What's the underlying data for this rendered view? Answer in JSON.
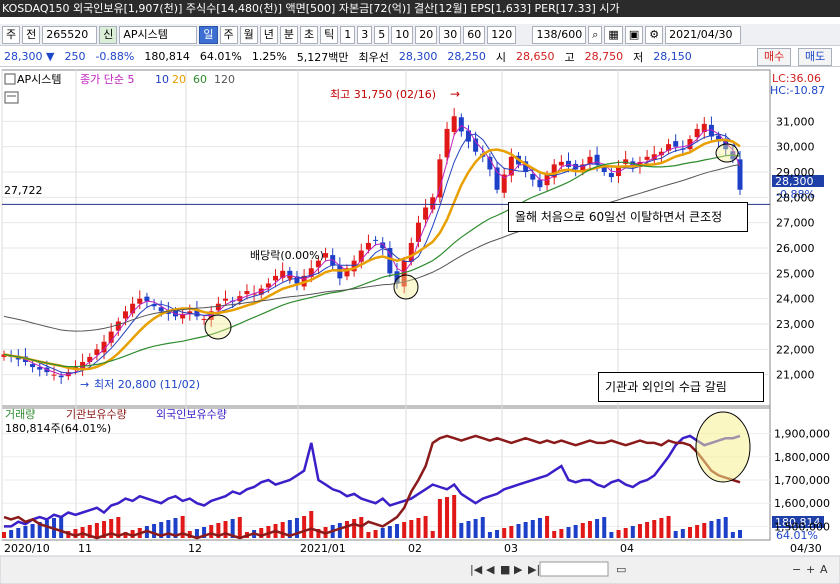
{
  "header": {
    "text": "KOSDAQ150 외국인보유[1,907(천)] 주식수[14,480(천)] 액면[500] 자본금[72(억)] 결산[12월] EPS[1,633] PER[17.33] 시가"
  },
  "toolbar": {
    "period": "주",
    "type": "전",
    "code": "265520",
    "sin": "신",
    "company": "AP시스템",
    "tabs": [
      "일",
      "주",
      "월",
      "년",
      "분",
      "초",
      "틱"
    ],
    "intervals": [
      "1",
      "3",
      "5",
      "10",
      "20",
      "30",
      "60",
      "120"
    ],
    "page": "138/600",
    "date": "2021/04/30"
  },
  "quote": {
    "price": "28,300 ▼",
    "change": "250",
    "change_pct": "-0.88%",
    "volume": "180,814",
    "foreign_pct": "64.01%",
    "turnover": "1.25%",
    "amount": "5,127백만",
    "best": "최우선",
    "ask": "28,300",
    "bid": "28,250",
    "open_label": "시",
    "open": "28,650",
    "high_label": "고",
    "high": "28,750",
    "low_label": "저",
    "low": "28,150",
    "buy_btn": "매수",
    "sell_btn": "매도"
  },
  "chart_data": {
    "type": "line",
    "price_legend": [
      {
        "name": "AP시스템"
      },
      {
        "name": "종가 단순 5"
      },
      {
        "name": "10"
      },
      {
        "name": "20"
      },
      {
        "name": "60"
      },
      {
        "name": "120"
      }
    ],
    "x": [
      "2020/10",
      "11",
      "12",
      "2021/01",
      "02",
      "03",
      "04",
      "04/30"
    ],
    "price_axis": {
      "ticks": [
        "31,000",
        "30,000",
        "29,000",
        "28,000",
        "27,000",
        "26,000",
        "25,000",
        "24,000",
        "23,000",
        "22,000",
        "21,000"
      ],
      "range": [
        20000,
        32000
      ]
    },
    "lc_label": "LC:36.06",
    "hc_label": "HC:-10.87",
    "ref_line_label": "27,722",
    "ref_line_value": 27722,
    "last_price_label": "28,300",
    "last_change_label": "-0.88%",
    "annotations": {
      "high": "최고 31,750 (02/16)",
      "low": "최저 20,800 (11/02)",
      "dividend": "배당락(0.00%)",
      "callout_main": "올해 처음으로 60일선 이탈하면서 큰조정",
      "callout_volume": "기관과 외인의 수급 갈림"
    },
    "volume_legend": [
      {
        "name": "거래량"
      },
      {
        "name": "기관보유수량"
      },
      {
        "name": "외국인보유수량"
      }
    ],
    "volume_info": "180,814주(64.01%)",
    "volume_axis": {
      "ticks": [
        "1,900,000",
        "1,800,000",
        "1,700,000",
        "1,600,000",
        "1,500,000"
      ],
      "range": [
        1450000,
        1950000
      ]
    },
    "volume_last": "180,814",
    "volume_pct_label": "64.01%",
    "close_series": [
      21800,
      21700,
      21600,
      21500,
      21300,
      21200,
      21100,
      21000,
      20900,
      21100,
      21300,
      21500,
      21700,
      22000,
      22300,
      22700,
      23100,
      23500,
      23800,
      24000,
      23900,
      23700,
      23500,
      23400,
      23300,
      23400,
      23500,
      23300,
      23200,
      23500,
      23800,
      24000,
      23900,
      24100,
      24300,
      24200,
      24400,
      24600,
      24900,
      25100,
      24800,
      24600,
      24900,
      25200,
      25500,
      25800,
      25300,
      24800,
      25200,
      25500,
      25900,
      26200,
      26300,
      26000,
      25000,
      24600,
      25500,
      26200,
      27000,
      27600,
      28000,
      29500,
      30700,
      31200,
      30600,
      30200,
      29800,
      29600,
      29100,
      28300,
      28900,
      29600,
      29300,
      29000,
      28700,
      28400,
      28900,
      29300,
      29400,
      29200,
      29100,
      29300,
      29600,
      29300,
      29000,
      28800,
      29200,
      29500,
      29200,
      29400,
      29600,
      29700,
      29800,
      30100,
      30000,
      29900,
      30300,
      30700,
      30900,
      30400,
      30200,
      29900,
      29500,
      28300
    ],
    "foreign_series": [
      1500000,
      1500000,
      1520000,
      1510000,
      1530000,
      1540000,
      1530000,
      1550000,
      1540000,
      1560000,
      1550000,
      1560000,
      1570000,
      1580000,
      1560000,
      1590000,
      1600000,
      1620000,
      1610000,
      1630000,
      1620000,
      1610000,
      1600000,
      1620000,
      1630000,
      1610000,
      1620000,
      1600000,
      1590000,
      1610000,
      1620000,
      1630000,
      1650000,
      1640000,
      1660000,
      1670000,
      1690000,
      1700000,
      1680000,
      1690000,
      1700000,
      1720000,
      1740000,
      1860000,
      1700000,
      1680000,
      1660000,
      1650000,
      1630000,
      1640000,
      1620000,
      1610000,
      1600000,
      1620000,
      1590000,
      1600000,
      1610000,
      1620000,
      1640000,
      1660000,
      1680000,
      1670000,
      1660000,
      1680000,
      1640000,
      1620000,
      1600000,
      1620000,
      1630000,
      1640000,
      1660000,
      1670000,
      1680000,
      1690000,
      1700000,
      1710000,
      1720000,
      1740000,
      1760000,
      1700000,
      1690000,
      1700000,
      1700000,
      1680000,
      1670000,
      1690000,
      1700000,
      1680000,
      1670000,
      1690000,
      1700000,
      1720000,
      1760000,
      1800000,
      1850000,
      1880000,
      1890000,
      1870000,
      1850000,
      1860000,
      1870000,
      1880000,
      1880000,
      1890000
    ],
    "inst_series": [
      1540000,
      1530000,
      1540000,
      1520000,
      1530000,
      1510000,
      1500000,
      1490000,
      1480000,
      1470000,
      1460000,
      1470000,
      1460000,
      1450000,
      1460000,
      1470000,
      1460000,
      1470000,
      1460000,
      1470000,
      1480000,
      1470000,
      1460000,
      1470000,
      1460000,
      1470000,
      1460000,
      1450000,
      1460000,
      1470000,
      1460000,
      1470000,
      1460000,
      1450000,
      1460000,
      1470000,
      1460000,
      1470000,
      1480000,
      1470000,
      1460000,
      1470000,
      1480000,
      1490000,
      1480000,
      1470000,
      1480000,
      1490000,
      1500000,
      1510000,
      1500000,
      1520000,
      1510000,
      1500000,
      1520000,
      1540000,
      1580000,
      1650000,
      1700000,
      1760000,
      1860000,
      1880000,
      1890000,
      1880000,
      1870000,
      1880000,
      1890000,
      1880000,
      1870000,
      1880000,
      1870000,
      1860000,
      1870000,
      1880000,
      1870000,
      1860000,
      1870000,
      1860000,
      1870000,
      1860000,
      1850000,
      1860000,
      1870000,
      1860000,
      1860000,
      1870000,
      1860000,
      1850000,
      1860000,
      1870000,
      1860000,
      1860000,
      1850000,
      1870000,
      1860000,
      1860000,
      1850000,
      1820000,
      1780000,
      1740000,
      1720000,
      1710000,
      1700000,
      1690000
    ]
  }
}
